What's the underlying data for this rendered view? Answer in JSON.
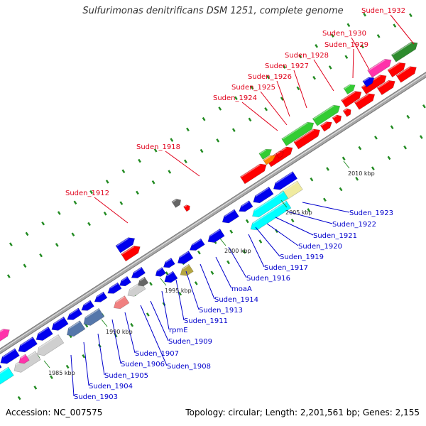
{
  "header": {
    "title": "Sulfurimonas denitrificans DSM 1251, complete genome"
  },
  "footer": {
    "accession": "Accession: NC_007575",
    "summary": "Topology: circular; Length: 2,201,561 bp; Genes: 2,155"
  },
  "colors": {
    "backbone": "#a8a8a8",
    "blue": "#0000ee",
    "red": "#ff0000",
    "green": "#33cc33",
    "dark_green": "#2e8b2e",
    "cyan": "#00ffff",
    "pale_yellow": "#f0eba0",
    "olive": "#b5a642",
    "gray": "#666666",
    "silver": "#cfcfcf",
    "pink": "#ff33aa",
    "steel": "#5577aa",
    "salmon": "#f08080",
    "orange": "#ff8800",
    "tick": "#228b22",
    "top_label": "#e0001a",
    "bottom_label": "#0000cc"
  },
  "kbp_labels": [
    "1985 kbp",
    "1990 kbp",
    "1995 kbp",
    "2000 kbp",
    "2005 kbp",
    "2010 kbp"
  ],
  "top_labels": [
    "Suden_1932",
    "Suden_1930",
    "Suden_1929",
    "Suden_1928",
    "Suden_1927",
    "Suden_1926",
    "Suden_1925",
    "Suden_1924",
    "Suden_1918",
    "Suden_1912"
  ],
  "bottom_labels": [
    "Suden_1923",
    "Suden_1922",
    "Suden_1921",
    "Suden_1920",
    "Suden_1919",
    "Suden_1917",
    "Suden_1916",
    "moaA",
    "Suden_1914",
    "Suden_1913",
    "Suden_1911",
    "rpmE",
    "Suden_1909",
    "Suden_1908",
    "Suden_1907",
    "Suden_1906",
    "Suden_1905",
    "Suden_1904",
    "Suden_1903"
  ]
}
